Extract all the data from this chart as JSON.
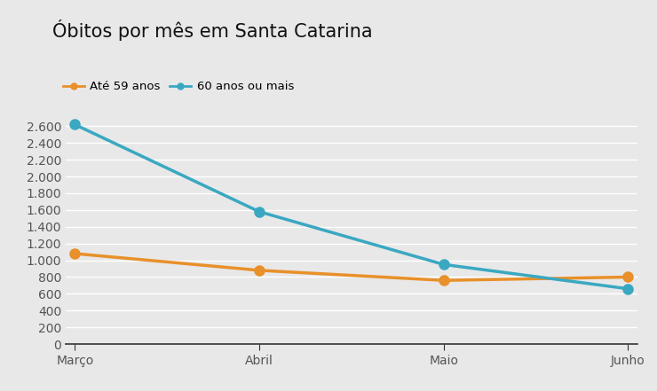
{
  "title": "Óbitos por mês em Santa Catarina",
  "categories": [
    "Março",
    "Abril",
    "Maio",
    "Junho"
  ],
  "series": [
    {
      "label": "Até 59 anos",
      "values": [
        1080,
        880,
        760,
        800
      ],
      "color": "#e8902a",
      "marker": "o"
    },
    {
      "label": "60 anos ou mais",
      "values": [
        2620,
        1580,
        950,
        660
      ],
      "color": "#3aa8c1",
      "marker": "o"
    }
  ],
  "ylim": [
    0,
    2800
  ],
  "yticks": [
    0,
    200,
    400,
    600,
    800,
    1000,
    1200,
    1400,
    1600,
    1800,
    2000,
    2200,
    2400,
    2600
  ],
  "fig_background_color": "#e8e8e8",
  "plot_background_color": "#e8e8e8",
  "grid_color": "#ffffff",
  "spine_color": "#333333",
  "title_fontsize": 15,
  "legend_fontsize": 9.5,
  "tick_fontsize": 10,
  "linewidth": 2.5,
  "markersize": 8
}
